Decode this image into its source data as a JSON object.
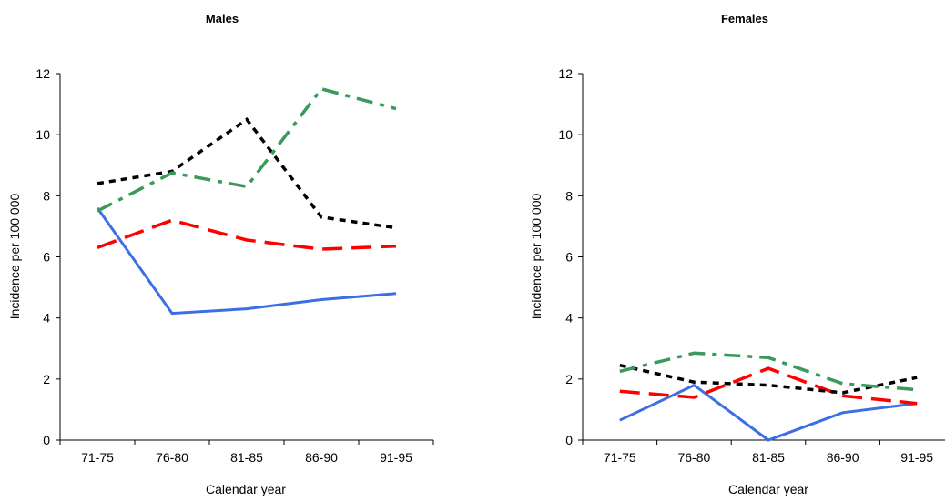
{
  "chart_data": [
    {
      "type": "line",
      "title": "Males",
      "xlabel": "Calendar year",
      "ylabel": "Incidence per 100 000",
      "categories": [
        "71-75",
        "76-80",
        "81-85",
        "86-90",
        "91-95"
      ],
      "ylim": [
        0,
        12
      ],
      "yticks": [
        "0",
        "2",
        "4",
        "6",
        "8",
        "10",
        "12"
      ],
      "grid": false,
      "legend": "none",
      "series": [
        {
          "color": "#3c6ee6",
          "dash": "solid",
          "values": [
            7.6,
            4.15,
            4.3,
            4.6,
            4.8
          ]
        },
        {
          "color": "#ff0000",
          "dash": "long-dash",
          "values": [
            6.3,
            7.2,
            6.55,
            6.25,
            6.35
          ]
        },
        {
          "color": "#000000",
          "dash": "dotted",
          "values": [
            8.4,
            8.8,
            10.5,
            7.3,
            6.95
          ]
        },
        {
          "color": "#3a9a5b",
          "dash": "dash-dot",
          "values": [
            7.5,
            8.75,
            8.3,
            11.5,
            10.85
          ]
        }
      ]
    },
    {
      "type": "line",
      "title": "Females",
      "xlabel": "Calendar year",
      "ylabel": "Incidence per 100 000",
      "categories": [
        "71-75",
        "76-80",
        "81-85",
        "86-90",
        "91-95"
      ],
      "ylim": [
        0,
        12
      ],
      "yticks": [
        "0",
        "2",
        "4",
        "6",
        "8",
        "10",
        "12"
      ],
      "grid": false,
      "legend": "none",
      "series": [
        {
          "color": "#3c6ee6",
          "dash": "solid",
          "values": [
            0.65,
            1.8,
            0.0,
            0.9,
            1.2
          ]
        },
        {
          "color": "#ff0000",
          "dash": "long-dash",
          "values": [
            1.6,
            1.4,
            2.35,
            1.45,
            1.2
          ]
        },
        {
          "color": "#000000",
          "dash": "dotted",
          "values": [
            2.45,
            1.9,
            1.8,
            1.55,
            2.05
          ]
        },
        {
          "color": "#3a9a5b",
          "dash": "dash-dot",
          "values": [
            2.25,
            2.85,
            2.7,
            1.85,
            1.65
          ]
        }
      ]
    }
  ]
}
